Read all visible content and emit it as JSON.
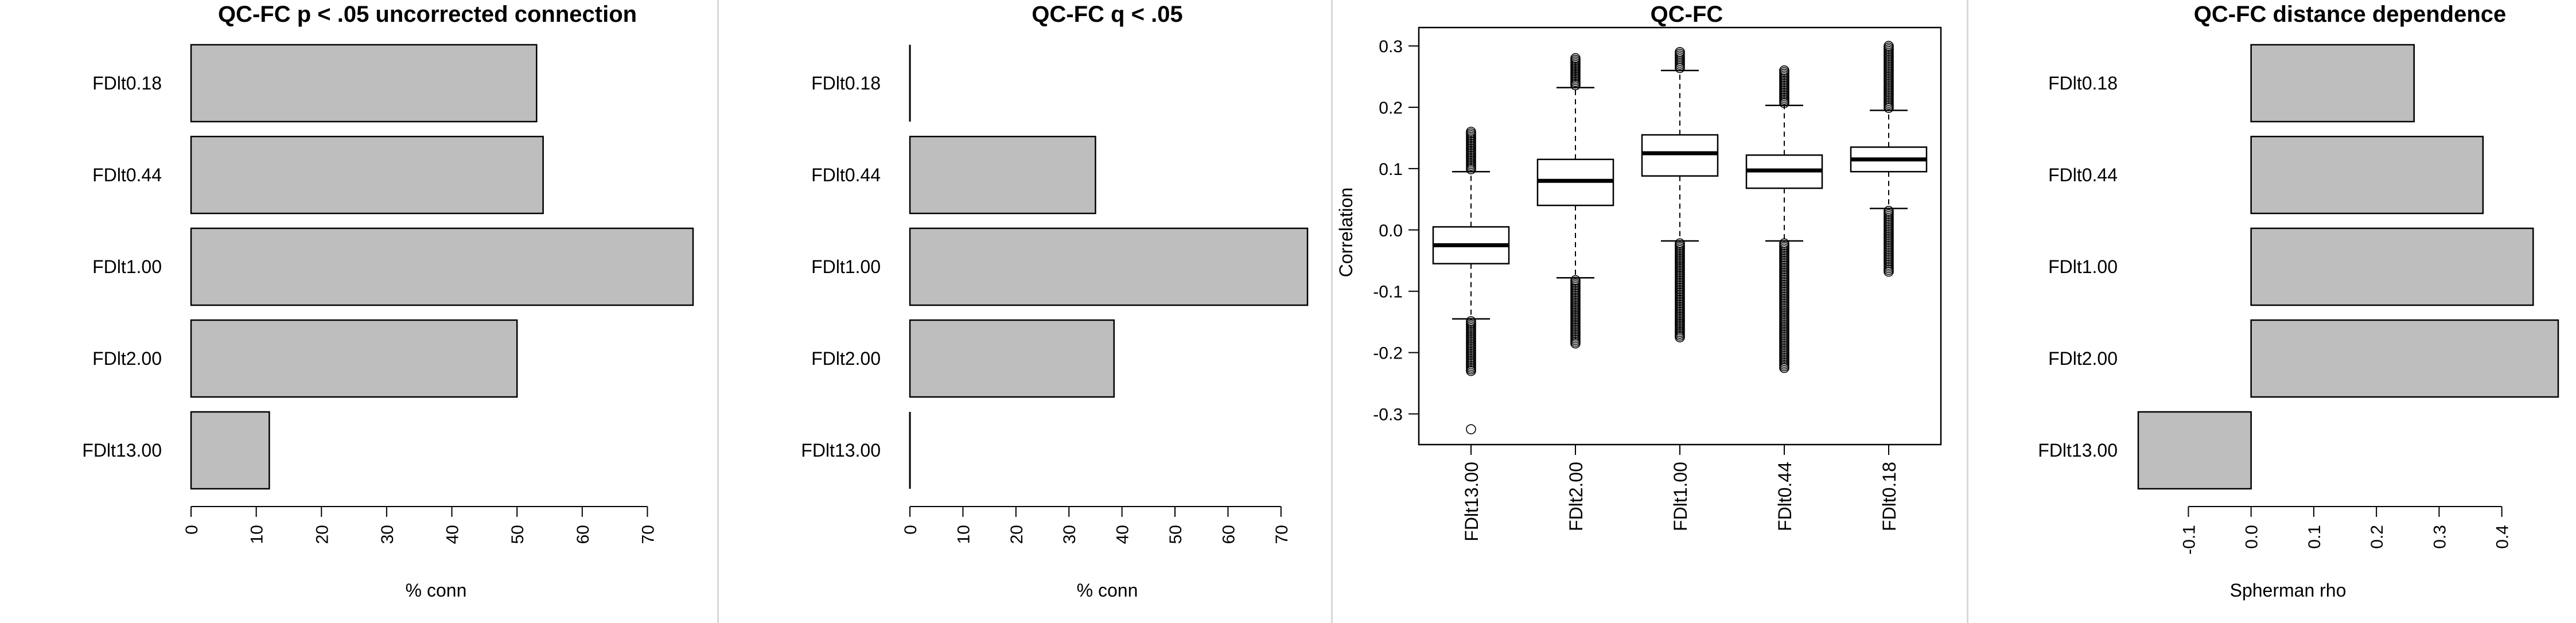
{
  "chart_data": [
    {
      "type": "bar",
      "orientation": "horizontal",
      "title": "QC-FC p < .05 uncorrected connection",
      "categories": [
        "FDlt0.18",
        "FDlt0.44",
        "FDlt1.00",
        "FDlt2.00",
        "FDlt13.00"
      ],
      "values": [
        53,
        54,
        77,
        50,
        12
      ],
      "xlabel": "% conn",
      "xlim": [
        0,
        77
      ],
      "xticks": [
        "0",
        "10",
        "20",
        "30",
        "40",
        "50",
        "60",
        "70"
      ],
      "bar_color": "#bebebe"
    },
    {
      "type": "bar",
      "orientation": "horizontal",
      "title": "QC-FC q < .05",
      "categories": [
        "FDlt0.18",
        "FDlt0.44",
        "FDlt1.00",
        "FDlt2.00",
        "FDlt13.00"
      ],
      "values": [
        0,
        35,
        75,
        38.5,
        0
      ],
      "xlabel": "% conn",
      "xlim": [
        0,
        75
      ],
      "xticks": [
        "0",
        "10",
        "20",
        "30",
        "40",
        "50",
        "60",
        "70"
      ],
      "bar_color": "#bebebe"
    },
    {
      "type": "box",
      "title": "QC-FC",
      "ylabel": "Correlation",
      "ylim": [
        -0.35,
        0.33
      ],
      "yticks": [
        "-0.3",
        "-0.2",
        "-0.1",
        "0.0",
        "0.1",
        "0.2",
        "0.3"
      ],
      "categories": [
        "FDlt13.00",
        "FDlt2.00",
        "FDlt1.00",
        "FDlt0.44",
        "FDlt0.18"
      ],
      "boxes": [
        {
          "q1": -0.055,
          "median": -0.025,
          "q3": 0.005,
          "whisker_low": -0.145,
          "whisker_high": 0.095,
          "out_low": -0.23,
          "out_high": 0.16,
          "extreme_low": -0.325
        },
        {
          "q1": 0.04,
          "median": 0.08,
          "q3": 0.115,
          "whisker_low": -0.078,
          "whisker_high": 0.232,
          "out_low": -0.185,
          "out_high": 0.28
        },
        {
          "q1": 0.088,
          "median": 0.125,
          "q3": 0.155,
          "whisker_low": -0.018,
          "whisker_high": 0.26,
          "out_low": -0.175,
          "out_high": 0.29
        },
        {
          "q1": 0.068,
          "median": 0.097,
          "q3": 0.122,
          "whisker_low": -0.018,
          "whisker_high": 0.203,
          "out_low": -0.225,
          "out_high": 0.26
        },
        {
          "q1": 0.095,
          "median": 0.115,
          "q3": 0.135,
          "whisker_low": 0.035,
          "whisker_high": 0.195,
          "out_low": -0.068,
          "out_high": 0.3
        }
      ]
    },
    {
      "type": "bar",
      "orientation": "horizontal",
      "title": "QC-FC distance dependence",
      "categories": [
        "FDlt0.18",
        "FDlt0.44",
        "FDlt1.00",
        "FDlt2.00",
        "FDlt13.00"
      ],
      "values": [
        0.26,
        0.37,
        0.45,
        0.49,
        -0.18
      ],
      "xlabel": "Spherman rho",
      "xlim": [
        -0.18,
        0.49
      ],
      "xtick_values": [
        -0.1,
        0.0,
        0.1,
        0.2,
        0.3,
        0.4
      ],
      "xticks": [
        "-0.1",
        "0.0",
        "0.1",
        "0.2",
        "0.3",
        "0.4"
      ],
      "bar_color": "#bebebe"
    }
  ]
}
